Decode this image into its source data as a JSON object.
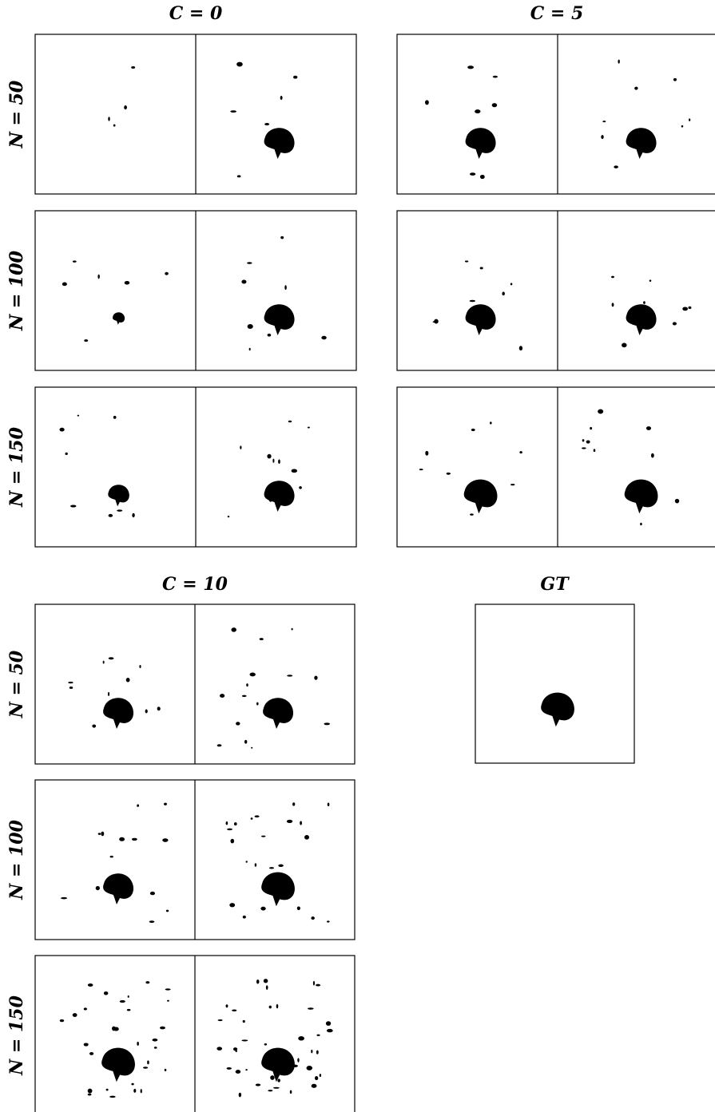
{
  "groups": [
    {
      "title": "C = 0",
      "rows": [
        "N = 50",
        "N = 100",
        "N = 150"
      ]
    },
    {
      "title": "C = 5",
      "rows": [
        "N = 50",
        "N = 100",
        "N = 150"
      ]
    },
    {
      "title": "C = 10",
      "rows": [
        "N = 50",
        "N = 100",
        "N = 150"
      ]
    }
  ],
  "gt": {
    "title": "GT"
  }
}
